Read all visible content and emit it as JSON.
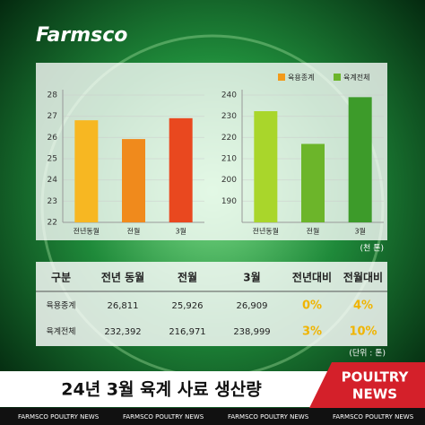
{
  "logo": "Farmsco",
  "chart_data": [
    {
      "type": "bar",
      "categories": [
        "전년동월",
        "전월",
        "3월"
      ],
      "series": [
        {
          "name": "육용종계",
          "color": "#f29a1a",
          "bar_colors": [
            "#f7b722",
            "#f08a1c",
            "#e9481f"
          ],
          "values": [
            26.811,
            25.926,
            26.909
          ]
        }
      ],
      "ylim": [
        22,
        28
      ],
      "yticks": [
        22,
        23,
        24,
        25,
        26,
        27,
        28
      ]
    },
    {
      "type": "bar",
      "categories": [
        "전년동월",
        "전월",
        "3월"
      ],
      "series": [
        {
          "name": "육계전체",
          "color": "#6cb52a",
          "bar_colors": [
            "#a9d62b",
            "#6cb52a",
            "#3d9b2a"
          ],
          "values": [
            232.392,
            216.971,
            238.999
          ]
        }
      ],
      "ylim": [
        180,
        240
      ],
      "yticks": [
        190,
        200,
        210,
        220,
        230,
        240
      ],
      "unit_label": "(천 톤)"
    }
  ],
  "table": {
    "header": [
      "구분",
      "전년 동월",
      "전월",
      "3월",
      "전년대비",
      "전월대비"
    ],
    "rows": [
      [
        "육용종계",
        "26,811",
        "25,926",
        "26,909",
        "0%",
        "4%"
      ],
      [
        "육계전체",
        "232,392",
        "216,971",
        "238,999",
        "3%",
        "10%"
      ]
    ],
    "unit_note": "(단위 : 톤)"
  },
  "title": "24년 3월 육계 사료 생산량",
  "badge": [
    "POULTRY",
    "NEWS"
  ],
  "footer": [
    "FARMSCO POULTRY NEWS",
    "FARMSCO POULTRY NEWS",
    "FARMSCO POULTRY NEWS",
    "FARMSCO POULTRY NEWS"
  ]
}
